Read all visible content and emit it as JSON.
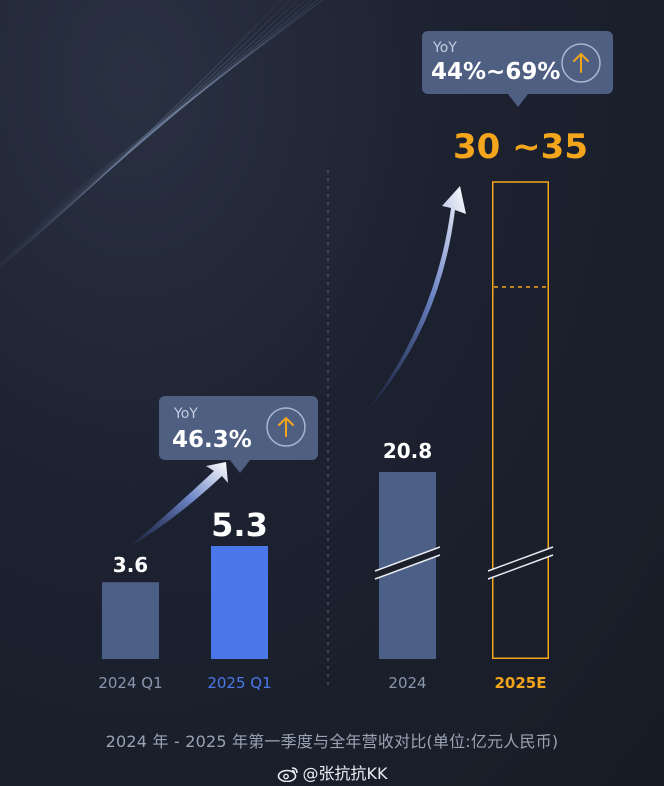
{
  "chart_data": [
    {
      "type": "bar",
      "categories": [
        "2024 Q1",
        "2025 Q1"
      ],
      "values": [
        3.6,
        5.3
      ],
      "value_labels": [
        "3.6",
        "5.3"
      ],
      "colors": [
        "#4c5f87",
        "#4a78e8"
      ],
      "label_colors": [
        "#8a96ad",
        "#4a78e8"
      ],
      "callout": {
        "label": "YoY",
        "value": "46.3%"
      }
    },
    {
      "type": "bar",
      "categories": [
        "2024",
        "2025E"
      ],
      "values": [
        20.8,
        35
      ],
      "range": [
        30,
        35
      ],
      "value_labels": [
        "20.8",
        "30 ~35"
      ],
      "axis_break": true,
      "colors": [
        "#4c5f87",
        "#f3a51c"
      ],
      "label_colors": [
        "#8a96ad",
        "#f3a51c"
      ],
      "callout": {
        "label": "YoY",
        "value": "44%~69%"
      }
    }
  ],
  "caption": "2024 年 - 2025 年第一季度与全年营收对比(单位:亿元人民币)",
  "watermark": "@张抗抗KK",
  "icons": {
    "callout_arrow": "arrow-up-icon",
    "watermark_logo": "weibo-logo-icon"
  }
}
